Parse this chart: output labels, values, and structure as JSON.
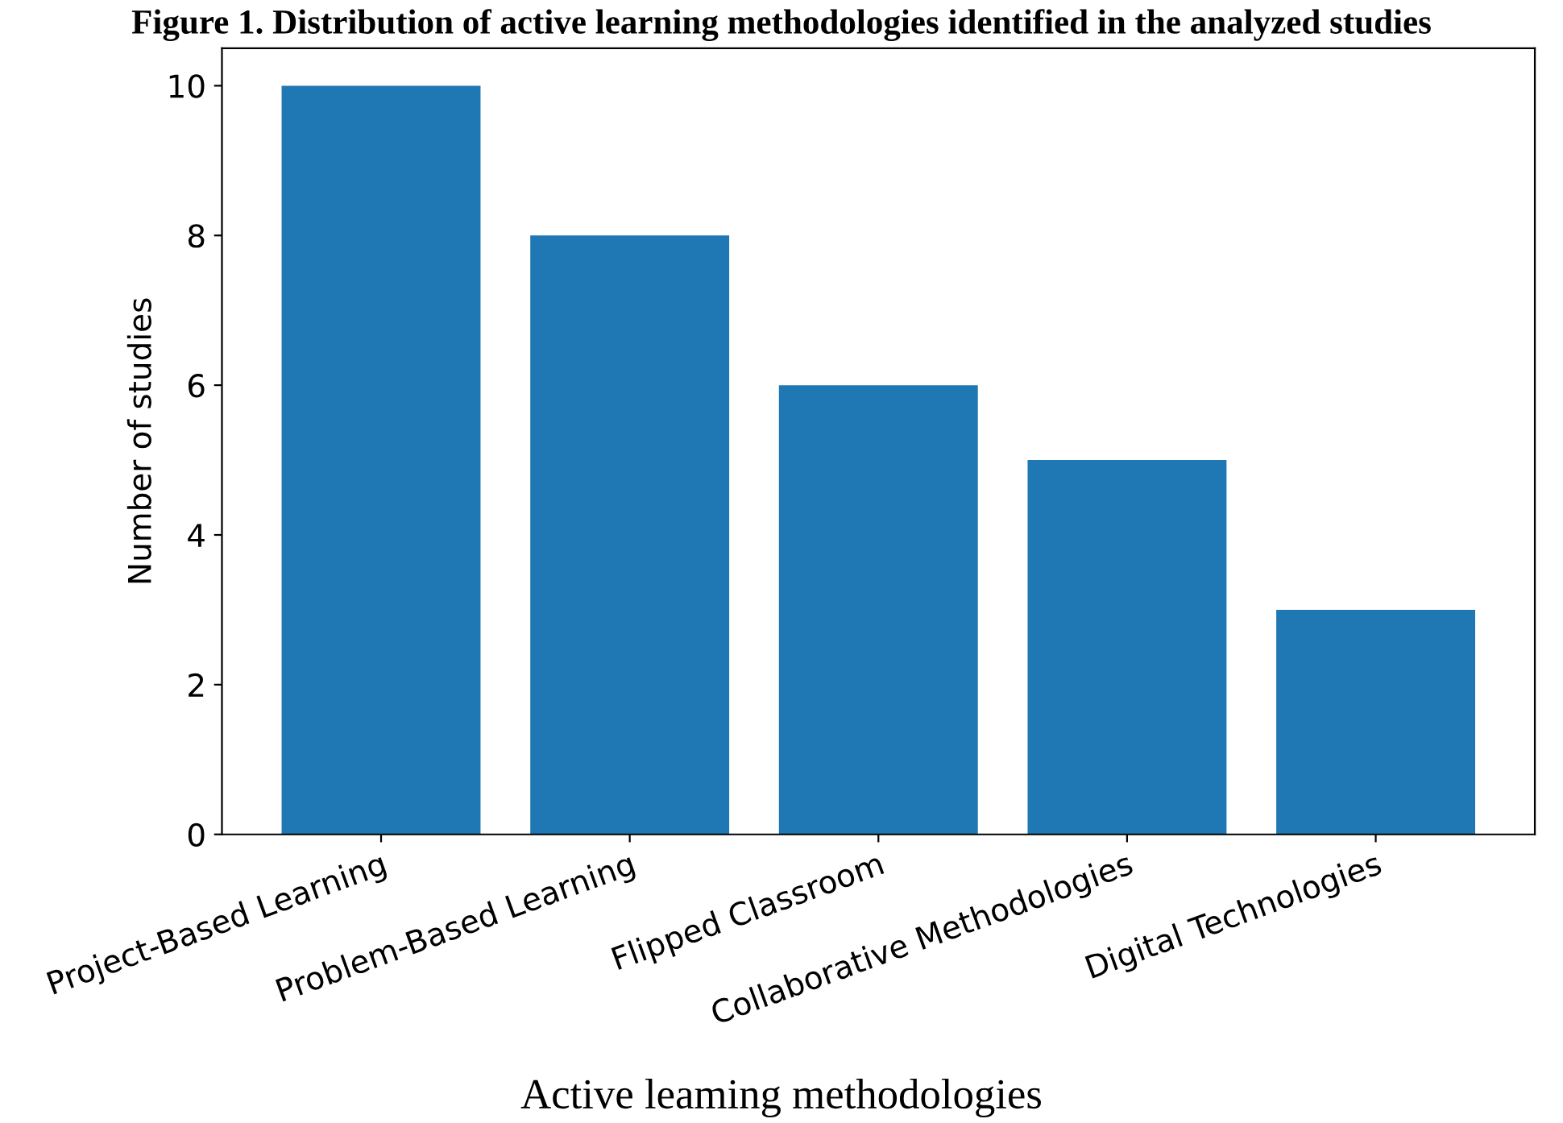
{
  "chart_data": {
    "type": "bar",
    "title": "Figure 1. Distribution of active learning methodologies identified in the analyzed studies",
    "xlabel": "Active leaming methodologies",
    "ylabel": "Number of studies",
    "categories": [
      "Project-Based Learning",
      "Problem-Based Learning",
      "Flipped Classroom",
      "Collaborative Methodologies",
      "Digital Technologies"
    ],
    "values": [
      10,
      8,
      6,
      5,
      3
    ],
    "color": "#1f77b4",
    "ylim": [
      0,
      10.5
    ],
    "yticks": [
      0,
      2,
      4,
      6,
      8,
      10
    ],
    "grid": false,
    "legend": false
  }
}
